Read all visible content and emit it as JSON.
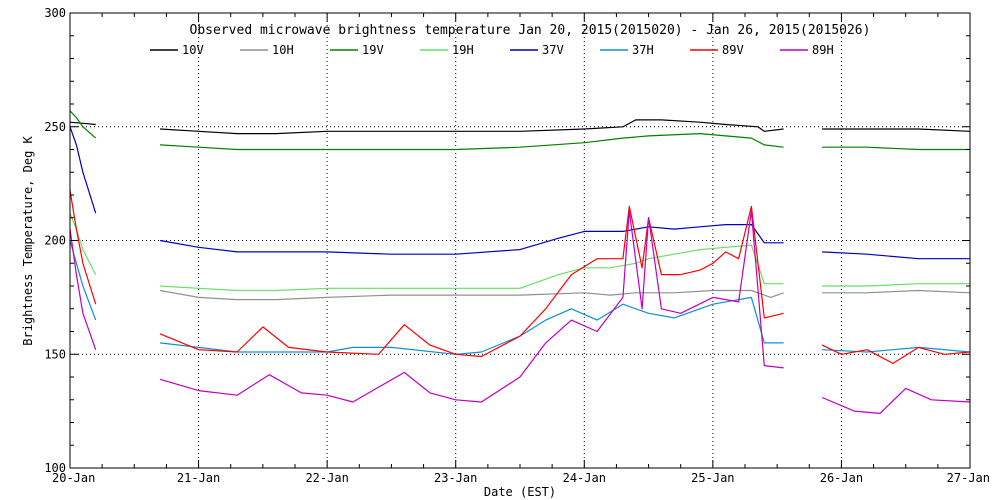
{
  "chart_data": {
    "type": "line",
    "title": "Observed microwave brightness temperature Jan 20, 2015(2015020) - Jan 26, 2015(2015026)",
    "xlabel": "Date (EST)",
    "ylabel": "Brightness Temperature, Deg K",
    "xlim": [
      "2015-01-20",
      "2015-01-27"
    ],
    "ylim": [
      100,
      300
    ],
    "x_ticks": [
      "20-Jan",
      "21-Jan",
      "22-Jan",
      "23-Jan",
      "24-Jan",
      "25-Jan",
      "26-Jan",
      "27-Jan"
    ],
    "y_ticks": [
      100,
      150,
      200,
      250,
      300
    ],
    "grid": "dotted at major ticks",
    "legend": "top",
    "series": [
      {
        "name": "10V",
        "color": "#000000",
        "segments": [
          [
            [
              0.0,
              252
            ],
            [
              0.1,
              251.5
            ],
            [
              0.2,
              251
            ]
          ],
          [
            [
              0.7,
              249
            ],
            [
              1.0,
              248
            ],
            [
              1.3,
              247
            ],
            [
              1.6,
              247
            ],
            [
              2.0,
              248
            ],
            [
              2.5,
              248
            ],
            [
              3.0,
              248
            ],
            [
              3.5,
              248
            ],
            [
              4.0,
              249
            ],
            [
              4.3,
              250
            ],
            [
              4.4,
              253
            ],
            [
              4.6,
              253
            ],
            [
              4.9,
              252
            ],
            [
              5.1,
              251
            ],
            [
              5.35,
              250
            ],
            [
              5.4,
              248
            ],
            [
              5.55,
              249
            ]
          ],
          [
            [
              5.85,
              249
            ],
            [
              6.2,
              249
            ],
            [
              6.6,
              249
            ],
            [
              7.0,
              248
            ]
          ]
        ]
      },
      {
        "name": "10H",
        "color": "#909090",
        "segments": [
          [
            [
              0.7,
              178
            ],
            [
              1.0,
              175
            ],
            [
              1.3,
              174
            ],
            [
              1.6,
              174
            ],
            [
              2.0,
              175
            ],
            [
              2.5,
              176
            ],
            [
              3.0,
              176
            ],
            [
              3.5,
              176
            ],
            [
              4.0,
              177
            ],
            [
              4.2,
              176
            ],
            [
              4.4,
              177
            ],
            [
              4.7,
              177
            ],
            [
              5.0,
              178
            ],
            [
              5.3,
              178
            ],
            [
              5.45,
              175
            ],
            [
              5.55,
              177
            ]
          ],
          [
            [
              5.85,
              177
            ],
            [
              6.2,
              177
            ],
            [
              6.6,
              178
            ],
            [
              7.0,
              177
            ]
          ]
        ]
      },
      {
        "name": "19V",
        "color": "#008000",
        "segments": [
          [
            [
              0.0,
              257
            ],
            [
              0.05,
              254
            ],
            [
              0.1,
              250
            ],
            [
              0.2,
              245
            ]
          ],
          [
            [
              0.7,
              242
            ],
            [
              1.0,
              241
            ],
            [
              1.3,
              240
            ],
            [
              1.6,
              240
            ],
            [
              2.0,
              240
            ],
            [
              2.5,
              240
            ],
            [
              3.0,
              240
            ],
            [
              3.5,
              241
            ],
            [
              4.0,
              243
            ],
            [
              4.3,
              245
            ],
            [
              4.5,
              246
            ],
            [
              4.9,
              247
            ],
            [
              5.3,
              245
            ],
            [
              5.4,
              242
            ],
            [
              5.55,
              241
            ]
          ],
          [
            [
              5.85,
              241
            ],
            [
              6.2,
              241
            ],
            [
              6.6,
              240
            ],
            [
              7.0,
              240
            ]
          ]
        ]
      },
      {
        "name": "19H",
        "color": "#66e066",
        "segments": [
          [
            [
              0.0,
              212
            ],
            [
              0.05,
              205
            ],
            [
              0.1,
              196
            ],
            [
              0.2,
              185
            ]
          ],
          [
            [
              0.7,
              180
            ],
            [
              1.0,
              179
            ],
            [
              1.3,
              178
            ],
            [
              1.6,
              178
            ],
            [
              2.0,
              179
            ],
            [
              2.5,
              179
            ],
            [
              3.0,
              179
            ],
            [
              3.5,
              179
            ],
            [
              3.8,
              185
            ],
            [
              4.0,
              188
            ],
            [
              4.2,
              188
            ],
            [
              4.4,
              190
            ],
            [
              4.5,
              192
            ],
            [
              4.7,
              194
            ],
            [
              4.9,
              196
            ],
            [
              5.1,
              197
            ],
            [
              5.3,
              198
            ],
            [
              5.4,
              181
            ],
            [
              5.55,
              181
            ]
          ],
          [
            [
              5.85,
              180
            ],
            [
              6.2,
              180
            ],
            [
              6.6,
              181
            ],
            [
              7.0,
              181
            ]
          ]
        ]
      },
      {
        "name": "37V",
        "color": "#0000c0",
        "segments": [
          [
            [
              0.0,
              250
            ],
            [
              0.05,
              242
            ],
            [
              0.1,
              230
            ],
            [
              0.2,
              212
            ]
          ],
          [
            [
              0.7,
              200
            ],
            [
              1.0,
              197
            ],
            [
              1.3,
              195
            ],
            [
              1.6,
              195
            ],
            [
              2.0,
              195
            ],
            [
              2.5,
              194
            ],
            [
              3.0,
              194
            ],
            [
              3.5,
              196
            ],
            [
              3.8,
              201
            ],
            [
              4.0,
              204
            ],
            [
              4.3,
              204
            ],
            [
              4.5,
              206
            ],
            [
              4.7,
              205
            ],
            [
              4.9,
              206
            ],
            [
              5.1,
              207
            ],
            [
              5.3,
              207
            ],
            [
              5.4,
              199
            ],
            [
              5.55,
              199
            ]
          ],
          [
            [
              5.85,
              195
            ],
            [
              6.2,
              194
            ],
            [
              6.6,
              192
            ],
            [
              7.0,
              192
            ]
          ]
        ]
      },
      {
        "name": "37H",
        "color": "#1090d0",
        "segments": [
          [
            [
              0.0,
              200
            ],
            [
              0.05,
              190
            ],
            [
              0.1,
              180
            ],
            [
              0.2,
              165
            ]
          ],
          [
            [
              0.7,
              155
            ],
            [
              1.0,
              153
            ],
            [
              1.3,
              151
            ],
            [
              1.6,
              151
            ],
            [
              2.0,
              151
            ],
            [
              2.2,
              153
            ],
            [
              2.5,
              153
            ],
            [
              3.0,
              150
            ],
            [
              3.2,
              151
            ],
            [
              3.5,
              158
            ],
            [
              3.7,
              165
            ],
            [
              3.9,
              170
            ],
            [
              4.1,
              165
            ],
            [
              4.3,
              172
            ],
            [
              4.5,
              168
            ],
            [
              4.7,
              166
            ],
            [
              5.0,
              172
            ],
            [
              5.3,
              175
            ],
            [
              5.4,
              155
            ],
            [
              5.55,
              155
            ]
          ],
          [
            [
              5.85,
              152
            ],
            [
              6.2,
              151
            ],
            [
              6.6,
              153
            ],
            [
              7.0,
              151
            ]
          ]
        ]
      },
      {
        "name": "89V",
        "color": "#ff0000",
        "segments": [
          [
            [
              0.0,
              222
            ],
            [
              0.05,
              205
            ],
            [
              0.1,
              190
            ],
            [
              0.2,
              172
            ]
          ],
          [
            [
              0.7,
              159
            ],
            [
              1.0,
              152
            ],
            [
              1.3,
              151
            ],
            [
              1.5,
              162
            ],
            [
              1.7,
              153
            ],
            [
              2.0,
              151
            ],
            [
              2.4,
              150
            ],
            [
              2.6,
              163
            ],
            [
              2.8,
              154
            ],
            [
              3.0,
              150
            ],
            [
              3.2,
              149
            ],
            [
              3.5,
              158
            ],
            [
              3.7,
              170
            ],
            [
              3.9,
              185
            ],
            [
              4.1,
              192
            ],
            [
              4.3,
              192
            ],
            [
              4.35,
              215
            ],
            [
              4.45,
              188
            ],
            [
              4.5,
              210
            ],
            [
              4.6,
              185
            ],
            [
              4.75,
              185
            ],
            [
              4.9,
              187
            ],
            [
              5.0,
              190
            ],
            [
              5.1,
              195
            ],
            [
              5.2,
              192
            ],
            [
              5.3,
              215
            ],
            [
              5.4,
              166
            ],
            [
              5.55,
              168
            ]
          ],
          [
            [
              5.85,
              154
            ],
            [
              6.0,
              150
            ],
            [
              6.2,
              152
            ],
            [
              6.4,
              146
            ],
            [
              6.6,
              153
            ],
            [
              6.8,
              150
            ],
            [
              7.0,
              151
            ]
          ]
        ]
      },
      {
        "name": "89H",
        "color": "#c000c0",
        "segments": [
          [
            [
              0.0,
              205
            ],
            [
              0.05,
              185
            ],
            [
              0.1,
              168
            ],
            [
              0.2,
              152
            ]
          ],
          [
            [
              0.7,
              139
            ],
            [
              1.0,
              134
            ],
            [
              1.3,
              132
            ],
            [
              1.55,
              141
            ],
            [
              1.8,
              133
            ],
            [
              2.0,
              132
            ],
            [
              2.2,
              129
            ],
            [
              2.6,
              142
            ],
            [
              2.8,
              133
            ],
            [
              3.0,
              130
            ],
            [
              3.2,
              129
            ],
            [
              3.5,
              140
            ],
            [
              3.7,
              155
            ],
            [
              3.9,
              165
            ],
            [
              4.1,
              160
            ],
            [
              4.3,
              175
            ],
            [
              4.35,
              213
            ],
            [
              4.45,
              170
            ],
            [
              4.5,
              210
            ],
            [
              4.6,
              170
            ],
            [
              4.75,
              168
            ],
            [
              5.0,
              175
            ],
            [
              5.2,
              173
            ],
            [
              5.3,
              213
            ],
            [
              5.4,
              145
            ],
            [
              5.55,
              144
            ]
          ],
          [
            [
              5.85,
              131
            ],
            [
              6.1,
              125
            ],
            [
              6.3,
              124
            ],
            [
              6.5,
              135
            ],
            [
              6.7,
              130
            ],
            [
              7.0,
              129
            ]
          ]
        ]
      }
    ]
  }
}
